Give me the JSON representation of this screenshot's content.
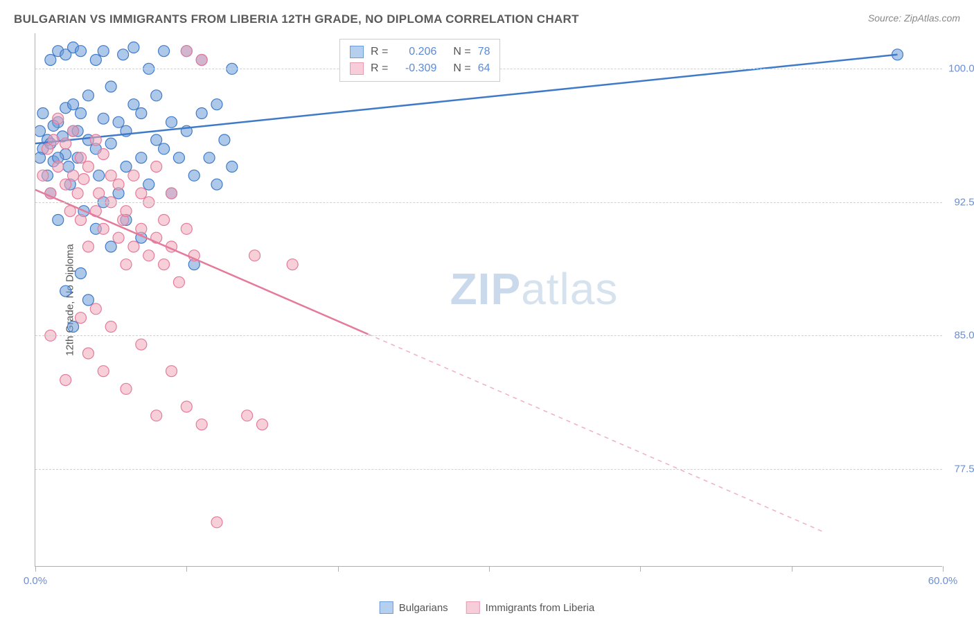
{
  "header": {
    "title": "BULGARIAN VS IMMIGRANTS FROM LIBERIA 12TH GRADE, NO DIPLOMA CORRELATION CHART",
    "source": "Source: ZipAtlas.com"
  },
  "watermark": {
    "part1": "ZIP",
    "part2": "atlas"
  },
  "chart": {
    "type": "scatter",
    "y_axis_label": "12th Grade, No Diploma",
    "xlim": [
      0,
      60
    ],
    "ylim": [
      72,
      102
    ],
    "x_ticks": [
      0,
      10,
      20,
      30,
      40,
      50,
      60
    ],
    "x_tick_labels": {
      "0": "0.0%",
      "60": "60.0%"
    },
    "y_ticks": [
      77.5,
      85.0,
      92.5,
      100.0
    ],
    "y_tick_labels": [
      "77.5%",
      "85.0%",
      "92.5%",
      "100.0%"
    ],
    "background_color": "#ffffff",
    "grid_color": "#d0d0d0",
    "axis_color": "#b0b0b0",
    "tick_label_color": "#6b8fd4",
    "marker_radius": 8,
    "marker_opacity": 0.55,
    "series": [
      {
        "name": "Bulgarians",
        "color": "#6b9bd8",
        "stroke": "#3f7ac8",
        "R": "0.206",
        "N": "78",
        "trend": {
          "x1": 0,
          "y1": 95.8,
          "x2": 57,
          "y2": 100.8,
          "solid_until_x": 57
        },
        "points": [
          [
            0.5,
            95.5
          ],
          [
            0.8,
            96.0
          ],
          [
            1.0,
            100.5
          ],
          [
            1.2,
            94.8
          ],
          [
            1.5,
            97.0
          ],
          [
            1.5,
            101.0
          ],
          [
            2.0,
            95.2
          ],
          [
            2.0,
            100.8
          ],
          [
            2.3,
            93.5
          ],
          [
            2.5,
            96.5
          ],
          [
            2.5,
            101.2
          ],
          [
            2.8,
            95.0
          ],
          [
            3.0,
            97.5
          ],
          [
            3.0,
            101.0
          ],
          [
            3.2,
            92.0
          ],
          [
            3.5,
            96.0
          ],
          [
            3.5,
            98.5
          ],
          [
            4.0,
            95.5
          ],
          [
            4.0,
            100.5
          ],
          [
            4.2,
            94.0
          ],
          [
            4.5,
            97.2
          ],
          [
            4.5,
            101.0
          ],
          [
            5.0,
            95.8
          ],
          [
            5.0,
            99.0
          ],
          [
            5.5,
            93.0
          ],
          [
            5.5,
            97.0
          ],
          [
            5.8,
            100.8
          ],
          [
            6.0,
            94.5
          ],
          [
            6.0,
            96.5
          ],
          [
            6.5,
            98.0
          ],
          [
            6.5,
            101.2
          ],
          [
            7.0,
            95.0
          ],
          [
            7.0,
            97.5
          ],
          [
            7.5,
            100.0
          ],
          [
            7.5,
            93.5
          ],
          [
            8.0,
            96.0
          ],
          [
            8.0,
            98.5
          ],
          [
            8.5,
            95.5
          ],
          [
            9.0,
            93.0
          ],
          [
            8.5,
            101.0
          ],
          [
            9.0,
            97.0
          ],
          [
            9.5,
            95.0
          ],
          [
            10.0,
            96.5
          ],
          [
            10.0,
            101.0
          ],
          [
            10.5,
            94.0
          ],
          [
            10.5,
            89.0
          ],
          [
            11.0,
            97.5
          ],
          [
            11.0,
            100.5
          ],
          [
            11.5,
            95.0
          ],
          [
            12.0,
            93.5
          ],
          [
            12.0,
            98.0
          ],
          [
            12.5,
            96.0
          ],
          [
            13.0,
            94.5
          ],
          [
            13.0,
            100.0
          ],
          [
            2.0,
            87.5
          ],
          [
            3.0,
            88.5
          ],
          [
            4.0,
            91.0
          ],
          [
            5.0,
            90.0
          ],
          [
            2.5,
            85.5
          ],
          [
            3.5,
            87.0
          ],
          [
            1.0,
            93.0
          ],
          [
            1.5,
            91.5
          ],
          [
            6.0,
            91.5
          ],
          [
            7.0,
            90.5
          ],
          [
            4.5,
            92.5
          ],
          [
            0.3,
            96.5
          ],
          [
            0.3,
            95.0
          ],
          [
            0.5,
            97.5
          ],
          [
            0.8,
            94.0
          ],
          [
            1.0,
            95.8
          ],
          [
            1.2,
            96.8
          ],
          [
            1.5,
            95.0
          ],
          [
            1.8,
            96.2
          ],
          [
            2.0,
            97.8
          ],
          [
            2.2,
            94.5
          ],
          [
            2.5,
            98.0
          ],
          [
            2.8,
            96.5
          ],
          [
            57.0,
            100.8
          ]
        ]
      },
      {
        "name": "Immigrants from Liberia",
        "color": "#f0a8ba",
        "stroke": "#e57a9a",
        "R": "-0.309",
        "N": "64",
        "trend": {
          "x1": 0,
          "y1": 93.2,
          "x2": 52,
          "y2": 74.0,
          "solid_until_x": 22
        },
        "points": [
          [
            0.5,
            94.0
          ],
          [
            0.8,
            95.5
          ],
          [
            1.0,
            93.0
          ],
          [
            1.2,
            96.0
          ],
          [
            1.5,
            94.5
          ],
          [
            1.5,
            97.2
          ],
          [
            2.0,
            93.5
          ],
          [
            2.0,
            95.8
          ],
          [
            2.3,
            92.0
          ],
          [
            2.5,
            94.0
          ],
          [
            2.5,
            96.5
          ],
          [
            2.8,
            93.0
          ],
          [
            3.0,
            95.0
          ],
          [
            3.0,
            91.5
          ],
          [
            3.2,
            93.8
          ],
          [
            3.5,
            90.0
          ],
          [
            3.5,
            94.5
          ],
          [
            4.0,
            92.0
          ],
          [
            4.0,
            96.0
          ],
          [
            4.2,
            93.0
          ],
          [
            4.5,
            91.0
          ],
          [
            4.5,
            95.2
          ],
          [
            5.0,
            92.5
          ],
          [
            5.0,
            94.0
          ],
          [
            5.5,
            90.5
          ],
          [
            5.5,
            93.5
          ],
          [
            5.8,
            91.5
          ],
          [
            6.0,
            89.0
          ],
          [
            6.0,
            92.0
          ],
          [
            6.5,
            90.0
          ],
          [
            6.5,
            94.0
          ],
          [
            7.0,
            91.0
          ],
          [
            7.0,
            93.0
          ],
          [
            7.5,
            89.5
          ],
          [
            7.5,
            92.5
          ],
          [
            8.0,
            90.5
          ],
          [
            8.0,
            94.5
          ],
          [
            8.5,
            91.5
          ],
          [
            8.5,
            89.0
          ],
          [
            9.0,
            90.0
          ],
          [
            9.0,
            93.0
          ],
          [
            9.5,
            88.0
          ],
          [
            10.0,
            91.0
          ],
          [
            10.5,
            89.5
          ],
          [
            11.0,
            100.5
          ],
          [
            1.0,
            85.0
          ],
          [
            2.0,
            82.5
          ],
          [
            3.0,
            86.0
          ],
          [
            3.5,
            84.0
          ],
          [
            4.0,
            86.5
          ],
          [
            4.5,
            83.0
          ],
          [
            5.0,
            85.5
          ],
          [
            6.0,
            82.0
          ],
          [
            7.0,
            84.5
          ],
          [
            8.0,
            80.5
          ],
          [
            9.0,
            83.0
          ],
          [
            10.0,
            81.0
          ],
          [
            11.0,
            80.0
          ],
          [
            12.0,
            74.5
          ],
          [
            14.0,
            80.5
          ],
          [
            15.0,
            80.0
          ],
          [
            14.5,
            89.5
          ],
          [
            17.0,
            89.0
          ],
          [
            10.0,
            101.0
          ]
        ]
      }
    ]
  },
  "stats_box": {
    "rows": [
      {
        "swatch_fill": "#b5cfee",
        "swatch_border": "#6b9bd8",
        "r_label": "R =",
        "r_value": "0.206",
        "n_label": "N =",
        "n_value": "78"
      },
      {
        "swatch_fill": "#f6cdd8",
        "swatch_border": "#e89ab2",
        "r_label": "R =",
        "r_value": "-0.309",
        "n_label": "N =",
        "n_value": "64"
      }
    ]
  },
  "bottom_legend": {
    "items": [
      {
        "swatch_fill": "#b5cfee",
        "swatch_border": "#6b9bd8",
        "label": "Bulgarians"
      },
      {
        "swatch_fill": "#f6cdd8",
        "swatch_border": "#e89ab2",
        "label": "Immigrants from Liberia"
      }
    ]
  }
}
